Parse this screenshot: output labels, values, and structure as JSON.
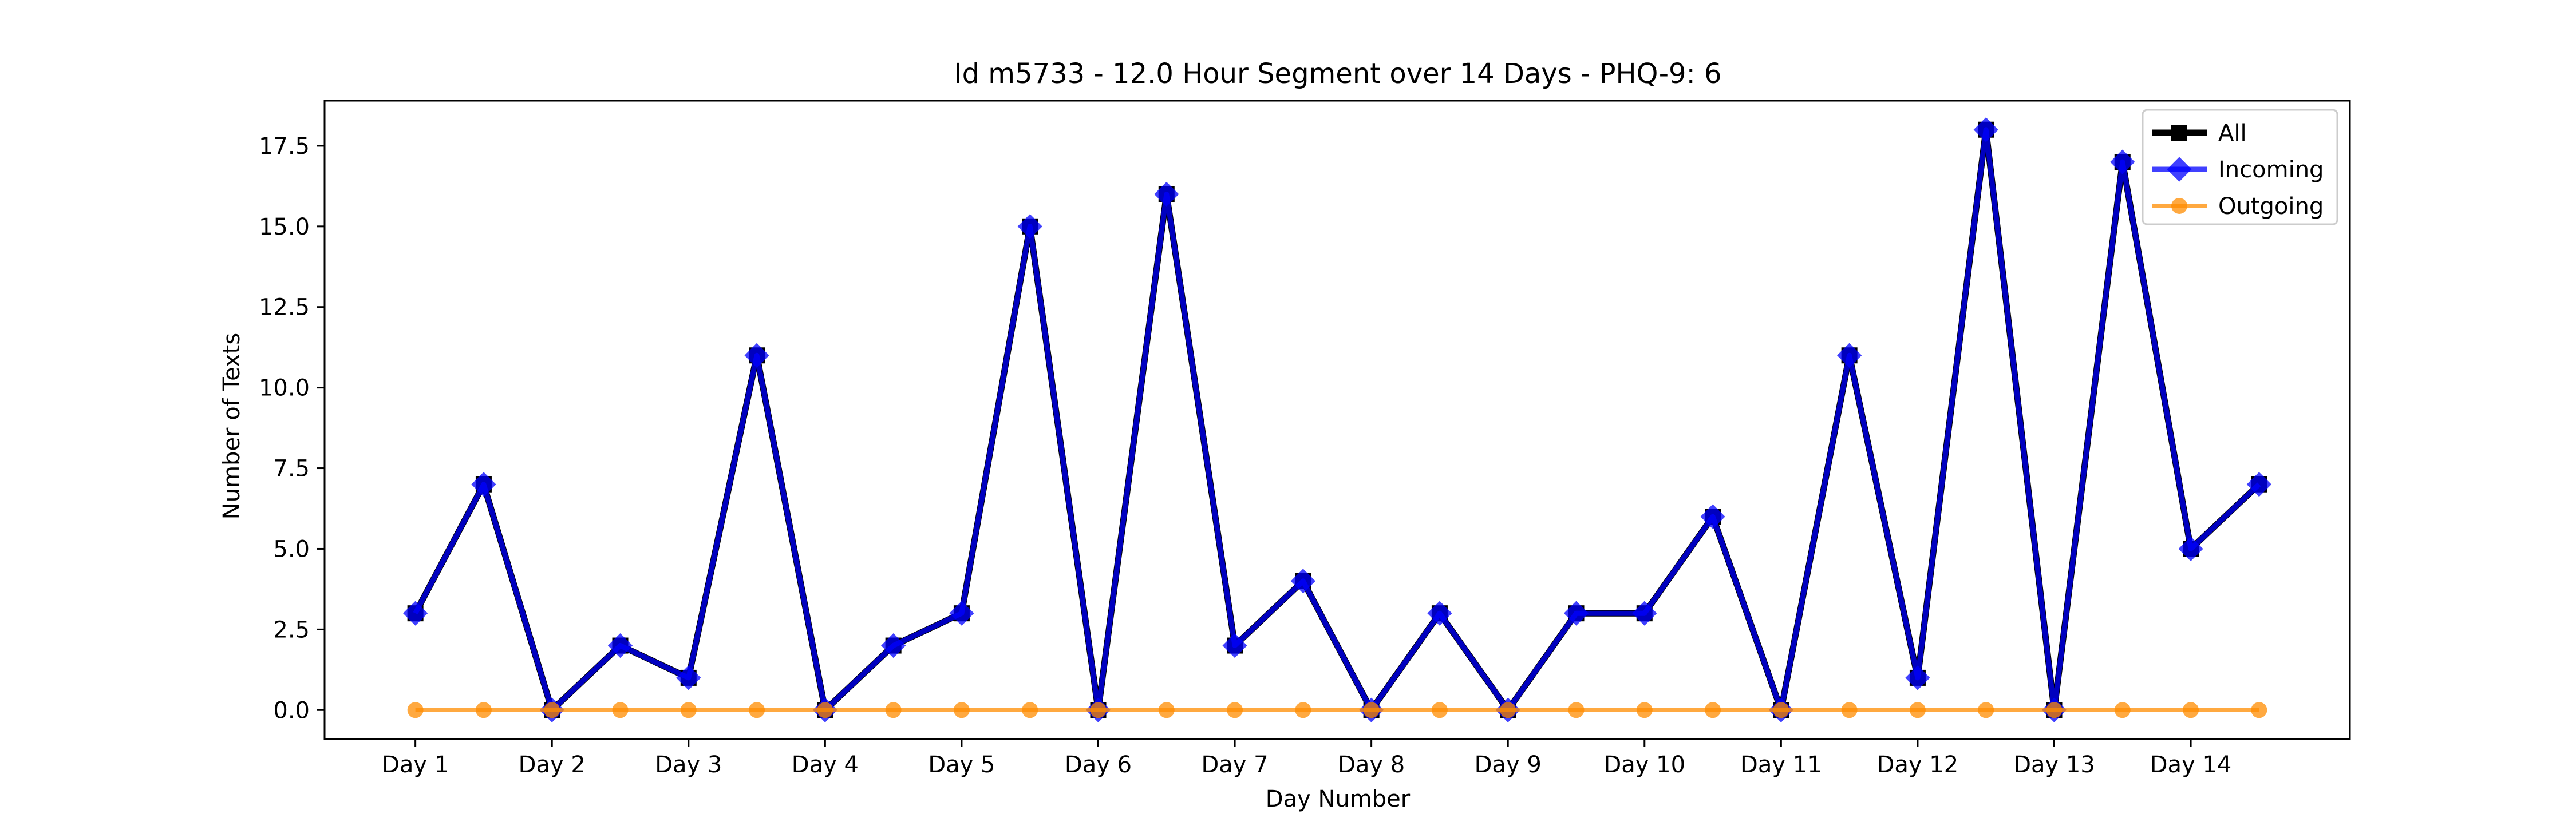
{
  "chart_data": {
    "type": "line",
    "title": "Id m5733 - 12.0 Hour Segment over 14 Days - PHQ-9: 6",
    "xlabel": "Day Number",
    "ylabel": "Number of Texts",
    "x_tick_labels": [
      "Day 1",
      "Day 2",
      "Day 3",
      "Day 4",
      "Day 5",
      "Day 6",
      "Day 7",
      "Day 8",
      "Day 9",
      "Day 10",
      "Day 11",
      "Day 12",
      "Day 13",
      "Day 14"
    ],
    "y_tick_labels": [
      "0.0",
      "2.5",
      "5.0",
      "7.5",
      "10.0",
      "12.5",
      "15.0",
      "17.5"
    ],
    "y_ticks": [
      0,
      2.5,
      5,
      7.5,
      10,
      12.5,
      15,
      17.5
    ],
    "x": [
      1,
      1.5,
      2,
      2.5,
      3,
      3.5,
      4,
      4.5,
      5,
      5.5,
      6,
      6.5,
      7,
      7.5,
      8,
      8.5,
      9,
      9.5,
      10,
      10.5,
      11,
      11.5,
      12,
      12.5,
      13,
      13.5,
      14,
      14.5
    ],
    "xlim": [
      0.335,
      15.165
    ],
    "ylim": [
      -0.9,
      18.9
    ],
    "grid": false,
    "legend_position": "top-right",
    "series": [
      {
        "name": "All",
        "color": "#000000",
        "marker": "square",
        "values": [
          3,
          7,
          0,
          2,
          1,
          11,
          0,
          2,
          3,
          15,
          0,
          16,
          2,
          4,
          0,
          3,
          0,
          3,
          3,
          6,
          0,
          11,
          1,
          18,
          0,
          17,
          5,
          7
        ]
      },
      {
        "name": "Incoming",
        "color": "#0000ff",
        "marker": "diamond",
        "values": [
          3,
          7,
          0,
          2,
          1,
          11,
          0,
          2,
          3,
          15,
          0,
          16,
          2,
          4,
          0,
          3,
          0,
          3,
          3,
          6,
          0,
          11,
          1,
          18,
          0,
          17,
          5,
          7
        ]
      },
      {
        "name": "Outgoing",
        "color": "#ff8c00",
        "marker": "circle",
        "values": [
          0,
          0,
          0,
          0,
          0,
          0,
          0,
          0,
          0,
          0,
          0,
          0,
          0,
          0,
          0,
          0,
          0,
          0,
          0,
          0,
          0,
          0,
          0,
          0,
          0,
          0,
          0,
          0
        ]
      }
    ]
  }
}
